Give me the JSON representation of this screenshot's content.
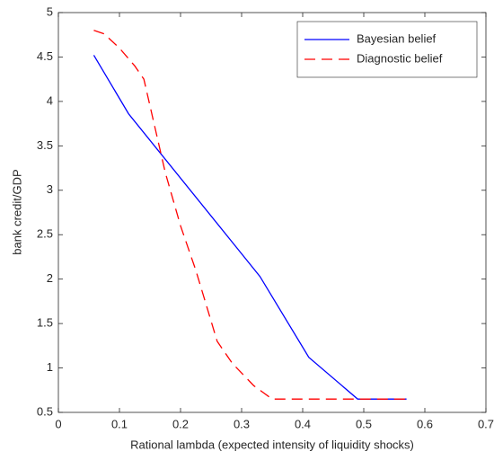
{
  "chart_data": {
    "type": "line",
    "xlabel": "Rational lambda (expected intensity of liquidity shocks)",
    "ylabel": "bank credit/GDP",
    "xlim": [
      0,
      0.7
    ],
    "ylim": [
      0.5,
      5
    ],
    "xticks": [
      0,
      0.1,
      0.2,
      0.3,
      0.4,
      0.5,
      0.6,
      0.7
    ],
    "yticks": [
      0.5,
      1,
      1.5,
      2,
      2.5,
      3,
      3.5,
      4,
      4.5,
      5
    ],
    "grid": false,
    "legend": "upper right",
    "series": [
      {
        "name": "Bayesian belief",
        "color": "#0000ff",
        "dash": "solid",
        "x": [
          0.058,
          0.115,
          0.33,
          0.41,
          0.49,
          0.57
        ],
        "values": [
          4.52,
          3.86,
          2.03,
          1.12,
          0.65,
          0.65
        ]
      },
      {
        "name": "Diagnostic belief",
        "color": "#ff0000",
        "dash": "dashed",
        "x": [
          0.058,
          0.075,
          0.1,
          0.125,
          0.14,
          0.155,
          0.175,
          0.2,
          0.225,
          0.26,
          0.285,
          0.32,
          0.35,
          0.43,
          0.5,
          0.57
        ],
        "values": [
          4.8,
          4.76,
          4.6,
          4.4,
          4.25,
          3.8,
          3.2,
          2.6,
          2.1,
          1.3,
          1.05,
          0.8,
          0.65,
          0.65,
          0.65,
          0.65
        ]
      }
    ]
  }
}
